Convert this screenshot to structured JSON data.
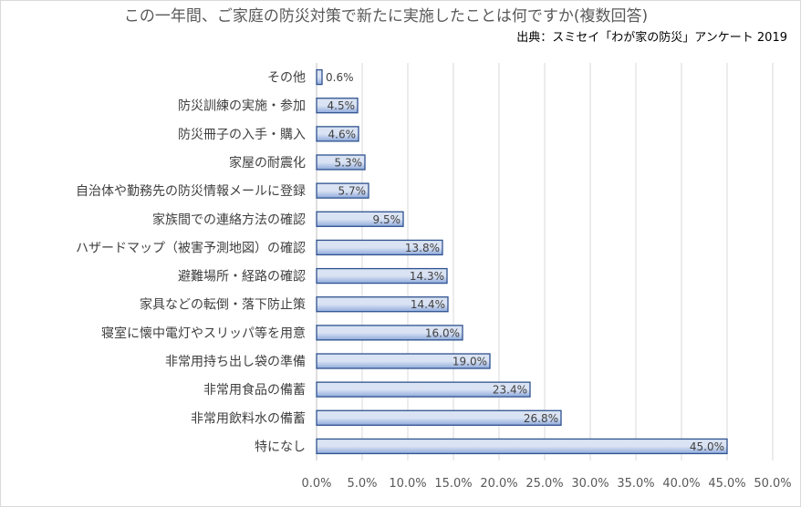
{
  "chart_data": {
    "type": "bar",
    "orientation": "horizontal",
    "title": "この一年間、ご家庭の防災対策で新たに実施したことは何ですか(複数回答)",
    "source": "出典：スミセイ「わが家の防災」アンケート 2019",
    "categories": [
      "その他",
      "防災訓練の実施・参加",
      "防災冊子の入手・購入",
      "家屋の耐震化",
      "自治体や勤務先の防災情報メールに登録",
      "家族間での連絡方法の確認",
      "ハザードマップ（被害予測地図）の確認",
      "避難場所・経路の確認",
      "家具などの転倒・落下防止策",
      "寝室に懐中電灯やスリッパ等を用意",
      "非常用持ち出し袋の準備",
      "非常用食品の備蓄",
      "非常用飲料水の備蓄",
      "特になし"
    ],
    "values": [
      0.6,
      4.5,
      4.6,
      5.3,
      5.7,
      9.5,
      13.8,
      14.3,
      14.4,
      16.0,
      19.0,
      23.4,
      26.8,
      45.0
    ],
    "value_labels": [
      "0.6%",
      "4.5%",
      "4.6%",
      "5.3%",
      "5.7%",
      "9.5%",
      "13.8%",
      "14.3%",
      "14.4%",
      "16.0%",
      "19.0%",
      "23.4%",
      "26.8%",
      "45.0%"
    ],
    "xlim": [
      0,
      50
    ],
    "x_ticks": [
      "0.0%",
      "5.0%",
      "10.0%",
      "15.0%",
      "20.0%",
      "25.0%",
      "30.0%",
      "35.0%",
      "40.0%",
      "45.0%",
      "50.0%"
    ],
    "grid": true,
    "bar_color_light": "#dae3f3",
    "bar_color_dark": "#8faadc",
    "bar_border": "#2f528f"
  }
}
